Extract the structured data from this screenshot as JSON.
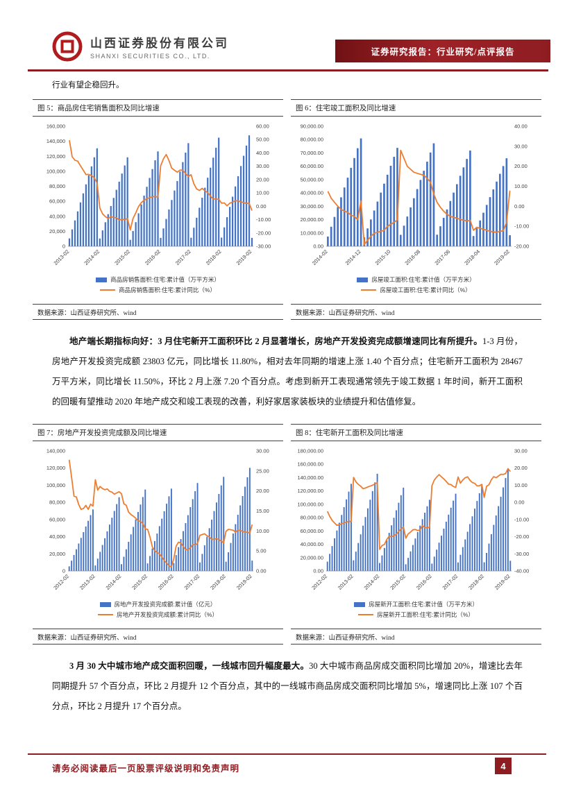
{
  "header": {
    "company_cn": "山西证券股份有限公司",
    "company_en": "SHANXI SECURITIES CO., LTD.",
    "banner": "证券研究报告：行业研究/点评报告"
  },
  "intro": "行业有望企稳回升。",
  "paragraphs": {
    "p1_bold": "地产端长期指标向好：3 月住宅新开工面积环比 2 月显著增长，房地产开发投资完成额增速同比有所提升。",
    "p1_rest": "1-3 月份，房地产开发投资完成额 23803 亿元，同比增长 11.80%，相对去年同期的增速上涨 1.40 个百分点；住宅新开工面积为 28467 万平方米，同比增长 11.50%，环比 2 月上涨 7.20 个百分点。考虑到新开工表现通常领先于竣工数据 1 年时间，新开工面积的回暖有望推动 2020 年地产成交和竣工表现的改善，利好家居家装板块的业绩提升和估值修复。",
    "p2_bold": "3 月 30 大中城市地产成交面积回暖，一线城市回升幅度最大。",
    "p2_rest": "30 大中城市商品房成交面积同比增加 20%，增速比去年同期提升 57 个百分点，环比 2 月提升 12 个百分点，其中的一线城市商品房成交面积同比增加 5%，增速同比上涨 107 个百分点，环比 2 月提升 17 个百分点。"
  },
  "footer": {
    "disclaimer": "请务必阅读最后一页股票评级说明和免责声明",
    "page_number": "4"
  },
  "colors": {
    "bar": "#4472C4",
    "line": "#ED7D31",
    "accent_red": "#8E1D22"
  },
  "chart_data": [
    {
      "type": "bar",
      "fig_label": "图 5：商品房住宅销售面积及同比增速",
      "title": "商品房住宅销售面积及同比增速",
      "source": "数据来源：山西证券研究所、wind",
      "legend_position": "bottom",
      "grid": false,
      "x_tick_labels": [
        "2013-02",
        "2014-02",
        "2015-02",
        "2016-02",
        "2017-02",
        "2018-02",
        "2019-02"
      ],
      "x_tick_indices": [
        0,
        11,
        22,
        33,
        44,
        55,
        66
      ],
      "left_axis": {
        "min": 0,
        "max": 160000,
        "step": 20000,
        "decimals": 0
      },
      "right_axis": {
        "min": -30,
        "max": 60,
        "step": 10,
        "decimals": 2
      },
      "series": [
        {
          "name": "商品房销售面积:住宅:累计值（万平方米）",
          "kind": "bar",
          "axis": "left",
          "values": [
            10500,
            22510,
            34520,
            46530,
            58540,
            70550,
            82560,
            94570,
            106580,
            118590,
            130600,
            10400,
            21220,
            32040,
            42860,
            53680,
            64500,
            75320,
            86140,
            96960,
            107780,
            118600,
            8600,
            20390,
            32180,
            43970,
            55760,
            67550,
            79340,
            91130,
            102920,
            114710,
            126500,
            11200,
            23830,
            36460,
            49090,
            61720,
            74350,
            86980,
            99610,
            112240,
            124870,
            137500,
            11400,
            24740,
            38080,
            51420,
            64760,
            78100,
            91440,
            104780,
            118120,
            131460,
            144800,
            11600,
            25230,
            38860,
            52490,
            66120,
            79750,
            93380,
            107010,
            120640,
            134270,
            147900,
            11200
          ]
        },
        {
          "name": "商品房销售面积:住宅:累计同比（%）",
          "kind": "line",
          "axis": "right",
          "values": [
            49.5,
            37.1,
            34.5,
            33.9,
            30.4,
            27.1,
            23.8,
            23.9,
            23.0,
            21.3,
            17.5,
            -1.2,
            -5.7,
            -7.8,
            -9.2,
            -7.8,
            -8.4,
            -8.6,
            -10.3,
            -9.7,
            -10.0,
            -9.2,
            -17.8,
            -9.2,
            -5.0,
            -0.2,
            2.7,
            4.5,
            5.7,
            6.5,
            7.1,
            7.4,
            6.9,
            30.4,
            35.6,
            38.8,
            34.2,
            28.6,
            27.0,
            25.6,
            27.1,
            27.0,
            24.5,
            22.4,
            23.7,
            16.9,
            13.0,
            11.9,
            13.5,
            11.5,
            10.3,
            7.6,
            5.6,
            5.4,
            5.3,
            2.3,
            2.5,
            0.4,
            2.3,
            3.2,
            4.2,
            4.1,
            3.3,
            2.8,
            2.1,
            2.2,
            -3.2
          ]
        }
      ]
    },
    {
      "type": "bar",
      "fig_label": "图 6：住宅竣工面积及同比增速",
      "title": "住宅竣工面积及同比增速",
      "source": "数据来源：山西证券研究所、wind",
      "legend_position": "bottom",
      "grid": false,
      "x_tick_labels": [
        "2014-02",
        "2014-12",
        "2015-10",
        "2016-08",
        "2017-06",
        "2018-04",
        "2019-02"
      ],
      "x_tick_indices": [
        0,
        10,
        19,
        28,
        37,
        46,
        55
      ],
      "left_axis": {
        "min": 0,
        "max": 90000,
        "step": 10000,
        "decimals": 2
      },
      "right_axis": {
        "min": -20,
        "max": 40,
        "step": 10,
        "decimals": 2
      },
      "series": [
        {
          "name": "房屋竣工面积:住宅:累计值（万平方米）",
          "kind": "bar",
          "axis": "left",
          "values": [
            7300,
            14660,
            22020,
            29380,
            36740,
            44100,
            51460,
            58820,
            66180,
            73540,
            80900,
            6700,
            13410,
            20120,
            26830,
            33540,
            40250,
            46960,
            53670,
            60380,
            67090,
            73800,
            8600,
            15460,
            22320,
            29180,
            36040,
            42900,
            49760,
            56620,
            63480,
            70340,
            77200,
            8700,
            15010,
            21320,
            27630,
            33940,
            40250,
            46560,
            52870,
            59180,
            65490,
            71800,
            7700,
            13530,
            19360,
            25190,
            31020,
            36850,
            42680,
            48510,
            54340,
            60170,
            66000,
            8300
          ]
        },
        {
          "name": "房屋竣工面积:住宅:累计同比（%）",
          "kind": "line",
          "axis": "right",
          "values": [
            7.5,
            4.0,
            2.0,
            0.0,
            -1.5,
            -2.5,
            -3.0,
            -4.5,
            -5.0,
            -6.8,
            2.7,
            -19.2,
            -17.0,
            -15.0,
            -13.5,
            -13.0,
            -12.5,
            -12.0,
            -10.0,
            -9.0,
            -8.0,
            -6.9,
            28.0,
            24.0,
            20.0,
            18.5,
            17.0,
            16.5,
            16.0,
            15.5,
            14.0,
            12.0,
            6.1,
            2.0,
            -0.5,
            -2.5,
            -4.0,
            -5.0,
            -5.5,
            -6.0,
            -6.5,
            -7.0,
            -7.3,
            -7.0,
            -12.0,
            -10.5,
            -11.0,
            -11.5,
            -12.0,
            -12.5,
            -12.8,
            -13.0,
            -12.5,
            -12.3,
            -8.1,
            7.8
          ]
        }
      ]
    },
    {
      "type": "bar",
      "fig_label": "图 7：房地产开发投资完成额及同比增速",
      "title": "房地产开发投资完成额及同比增速",
      "source": "数据来源：山西证券研究所、wind",
      "legend_position": "bottom",
      "grid": false,
      "x_tick_labels": [
        "2012-02",
        "2013-02",
        "2014-02",
        "2015-02",
        "2016-02",
        "2017-02",
        "2018-02",
        "2019-02"
      ],
      "x_tick_indices": [
        0,
        11,
        22,
        33,
        44,
        55,
        66,
        77
      ],
      "left_axis": {
        "min": 0,
        "max": 140000,
        "step": 20000,
        "decimals": 0
      },
      "right_axis": {
        "min": 0,
        "max": 30,
        "step": 5,
        "decimals": 2
      },
      "series": [
        {
          "name": "房地产开发投资完成额:累计值（亿元）",
          "kind": "bar",
          "axis": "left",
          "values": [
            5400,
            12000,
            18700,
            25300,
            32000,
            38600,
            45300,
            51900,
            58500,
            65200,
            71800,
            6400,
            14400,
            22300,
            30300,
            38200,
            46200,
            54100,
            62100,
            70000,
            78000,
            86000,
            7900,
            16600,
            25300,
            34000,
            42700,
            51400,
            60100,
            68800,
            77500,
            86200,
            95000,
            8800,
            17500,
            26200,
            34900,
            43600,
            52300,
            61000,
            69700,
            78400,
            87100,
            96000,
            9200,
            18500,
            27800,
            37200,
            46500,
            55800,
            65100,
            74500,
            83800,
            93100,
            102600,
            9900,
            19900,
            29900,
            39900,
            49900,
            59900,
            69900,
            79900,
            89800,
            99800,
            109800,
            10800,
            21800,
            32700,
            43700,
            54600,
            65500,
            76500,
            87400,
            98300,
            109300,
            120300,
            12100
          ]
        },
        {
          "name": "房地产开发投资完成额:累计同比（%）",
          "kind": "line",
          "axis": "right",
          "values": [
            27.8,
            23.5,
            18.7,
            18.5,
            16.6,
            15.4,
            15.6,
            16.4,
            15.4,
            16.7,
            16.2,
            22.8,
            20.2,
            21.1,
            20.6,
            20.3,
            20.5,
            19.9,
            19.7,
            19.2,
            19.5,
            19.8,
            19.3,
            16.8,
            16.4,
            14.7,
            14.1,
            13.7,
            13.2,
            12.5,
            12.4,
            11.9,
            10.5,
            10.4,
            8.5,
            6.0,
            5.1,
            4.6,
            4.3,
            3.5,
            2.6,
            2.0,
            1.3,
            1.0,
            3.0,
            6.2,
            7.2,
            7.0,
            6.1,
            5.3,
            5.4,
            5.8,
            6.6,
            6.5,
            6.9,
            8.9,
            9.1,
            9.3,
            8.8,
            8.5,
            7.9,
            7.9,
            8.1,
            7.8,
            7.5,
            7.0,
            9.9,
            10.4,
            10.3,
            10.2,
            9.7,
            10.2,
            10.1,
            9.9,
            9.7,
            9.7,
            9.5,
            11.6
          ]
        }
      ]
    },
    {
      "type": "bar",
      "fig_label": "图 8：住宅新开工面积及同比增速",
      "title": "住宅新开工面积及同比增速",
      "source": "数据来源：山西证券研究所、wind",
      "legend_position": "bottom",
      "grid": false,
      "x_tick_labels": [
        "2012-02",
        "2013-02",
        "2014-02",
        "2015-02",
        "2016-02",
        "2017-02",
        "2018-02",
        "2019-02"
      ],
      "x_tick_indices": [
        0,
        11,
        22,
        33,
        44,
        55,
        66,
        77
      ],
      "left_axis": {
        "min": 0,
        "max": 180000,
        "step": 20000,
        "decimals": 2
      },
      "right_axis": {
        "min": -40,
        "max": 30,
        "step": 10,
        "decimals": 2
      },
      "series": [
        {
          "name": "房屋新开工面积:住宅:累计值（万平方米）",
          "kind": "bar",
          "axis": "left",
          "values": [
            14000,
            25670,
            37340,
            49010,
            60680,
            72350,
            84020,
            95690,
            107360,
            119030,
            130700,
            16000,
            28980,
            41960,
            54940,
            67920,
            80900,
            93880,
            106860,
            119840,
            132820,
            145800,
            12000,
            23290,
            34580,
            45870,
            57160,
            68450,
            79740,
            91030,
            102320,
            113610,
            124900,
            10000,
            19670,
            29340,
            39010,
            48680,
            58350,
            68020,
            77690,
            87360,
            97030,
            106700,
            11000,
            21490,
            31980,
            42470,
            52960,
            63450,
            73940,
            84430,
            94920,
            105410,
            115900,
            12700,
            24240,
            35780,
            47320,
            58860,
            70400,
            81940,
            93480,
            105020,
            116560,
            128100,
            13000,
            27040,
            41080,
            55120,
            69160,
            83200,
            97240,
            111280,
            125320,
            139360,
            153400,
            15300
          ]
        },
        {
          "name": "房屋新开工面积:住宅:累计同比（%）",
          "kind": "line",
          "axis": "right",
          "values": [
            -5.2,
            -8.2,
            -10.5,
            -12.0,
            -13.4,
            -13.0,
            -12.5,
            -12.0,
            -11.5,
            -11.0,
            -11.2,
            14.6,
            12.0,
            10.5,
            9.5,
            8.0,
            8.4,
            9.0,
            9.5,
            10.0,
            10.8,
            11.6,
            -27.4,
            -25.2,
            -24.5,
            -21.6,
            -19.8,
            -20.0,
            -19.5,
            -18.5,
            -17.0,
            -15.5,
            -14.4,
            -20.9,
            -18.4,
            -17.3,
            -16.0,
            -15.8,
            -16.4,
            -16.0,
            -13.5,
            -14.7,
            -14.7,
            -14.6,
            9.7,
            13.1,
            14.8,
            16.2,
            14.9,
            13.7,
            12.2,
            10.6,
            10.4,
            9.3,
            8.7,
            14.8,
            11.2,
            13.1,
            14.4,
            14.9,
            12.9,
            11.6,
            11.1,
            9.6,
            9.7,
            10.5,
            2.9,
            9.4,
            10.3,
            13.2,
            15.0,
            14.4,
            15.4,
            16.4,
            16.3,
            16.8,
            19.7,
            18.0
          ]
        }
      ]
    }
  ]
}
